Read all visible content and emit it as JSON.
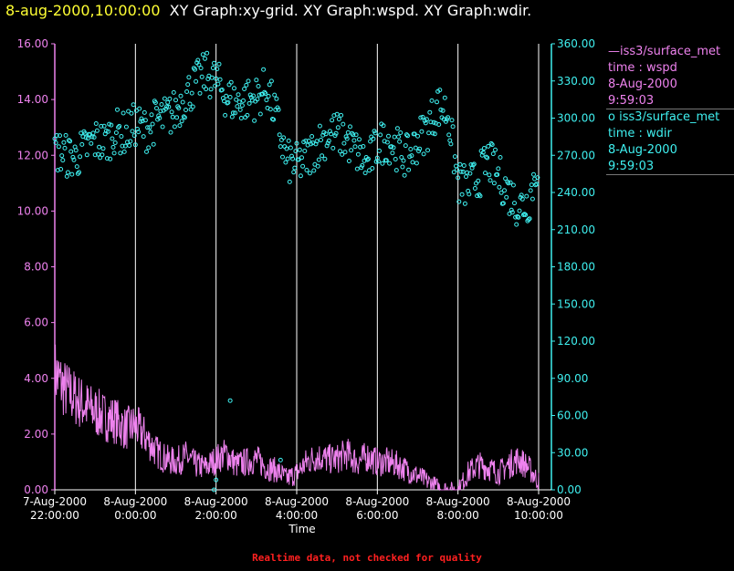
{
  "header": {
    "timestamp": "8-aug-2000,10:00:00",
    "title": "XY Graph:xy-grid.  XY Graph:wspd.  XY Graph:wdir."
  },
  "legend": {
    "series1": {
      "marker": "—",
      "name": "iss3/surface_met",
      "field": "time : wspd",
      "date": "8-Aug-2000",
      "time": "9:59:03"
    },
    "series2": {
      "marker": "o",
      "name": "iss3/surface_met",
      "field": "time : wdir",
      "date": "8-Aug-2000",
      "time": "9:59:03"
    }
  },
  "footer_note": "Realtime data, not checked for quality",
  "colors": {
    "wspd": "#ee82ee",
    "wdir": "#3ff0f0",
    "grid": "#ffffff",
    "header_ts": "#ffff33",
    "note": "#ff2020"
  },
  "chart_data": {
    "type": "line",
    "xlabel": "Time",
    "x_range_hours": [
      0,
      12
    ],
    "x_ticks": [
      {
        "hour": 0,
        "date": "7-Aug-2000",
        "time": "22:00:00"
      },
      {
        "hour": 2,
        "date": "8-Aug-2000",
        "time": "0:00:00"
      },
      {
        "hour": 4,
        "date": "8-Aug-2000",
        "time": "2:00:00"
      },
      {
        "hour": 6,
        "date": "8-Aug-2000",
        "time": "4:00:00"
      },
      {
        "hour": 8,
        "date": "8-Aug-2000",
        "time": "6:00:00"
      },
      {
        "hour": 10,
        "date": "8-Aug-2000",
        "time": "8:00:00"
      },
      {
        "hour": 12,
        "date": "8-Aug-2000",
        "time": "10:00:00"
      }
    ],
    "left_axis": {
      "series": "wspd",
      "ylim": [
        0,
        16
      ],
      "ticks": [
        "0.00",
        "2.00",
        "4.00",
        "6.00",
        "8.00",
        "10.00",
        "12.00",
        "14.00",
        "16.00"
      ]
    },
    "right_axis": {
      "series": "wdir",
      "ylim": [
        0,
        360
      ],
      "ticks": [
        "0.00",
        "30.00",
        "60.00",
        "90.00",
        "120.00",
        "150.00",
        "180.00",
        "210.00",
        "240.00",
        "270.00",
        "300.00",
        "330.00",
        "360.00"
      ]
    },
    "series": [
      {
        "name": "wspd",
        "style": "line",
        "axis": "left",
        "x_hours": [
          0,
          0.25,
          0.5,
          0.75,
          1,
          1.25,
          1.5,
          1.75,
          2,
          2.25,
          2.5,
          2.75,
          3,
          3.25,
          3.5,
          3.75,
          4,
          4.25,
          4.5,
          4.75,
          5,
          5.25,
          5.5,
          5.75,
          6,
          6.25,
          6.5,
          6.75,
          7,
          7.25,
          7.5,
          7.75,
          8,
          8.25,
          8.5,
          8.75,
          9,
          9.25,
          9.5,
          9.75,
          10,
          10.25,
          10.5,
          10.75,
          11,
          11.25,
          11.5,
          11.75,
          12
        ],
        "values": [
          4.2,
          3.6,
          3.3,
          3.0,
          2.8,
          2.6,
          2.5,
          2.2,
          2.3,
          1.9,
          1.4,
          1.1,
          1.0,
          1.2,
          0.9,
          0.8,
          1.1,
          1.3,
          0.9,
          1.0,
          1.1,
          0.8,
          0.7,
          0.4,
          0.6,
          1.0,
          1.2,
          1.1,
          1.1,
          1.3,
          1.0,
          1.2,
          1.0,
          1.0,
          0.9,
          0.7,
          0.5,
          0.3,
          0.1,
          0.0,
          0.0,
          0.6,
          0.9,
          0.8,
          0.6,
          0.9,
          1.1,
          0.8,
          0.3
        ]
      },
      {
        "name": "wdir",
        "style": "scatter",
        "axis": "right",
        "x_hours": [
          0,
          0.25,
          0.5,
          0.75,
          1,
          1.25,
          1.5,
          1.75,
          2,
          2.25,
          2.5,
          2.75,
          3,
          3.25,
          3.5,
          3.75,
          4,
          4.25,
          4.5,
          4.75,
          5,
          5.25,
          5.5,
          5.75,
          6,
          6.25,
          6.5,
          6.75,
          7,
          7.25,
          7.5,
          7.75,
          8,
          8.25,
          8.5,
          8.75,
          9,
          9.25,
          9.5,
          9.75,
          10,
          10.25,
          10.5,
          10.75,
          11,
          11.25,
          11.5,
          11.75,
          12
        ],
        "values": [
          275,
          270,
          268,
          275,
          282,
          280,
          290,
          287,
          295,
          290,
          298,
          300,
          306,
          318,
          328,
          336,
          330,
          318,
          312,
          315,
          316,
          325,
          300,
          265,
          262,
          268,
          278,
          286,
          288,
          282,
          272,
          262,
          278,
          283,
          275,
          268,
          282,
          292,
          310,
          304,
          248,
          244,
          252,
          266,
          254,
          240,
          229,
          232,
          268
        ]
      }
    ],
    "outliers_wdir": [
      [
        4.35,
        72
      ],
      [
        4.0,
        8
      ],
      [
        3.95,
        0
      ],
      [
        5.6,
        24
      ]
    ]
  }
}
